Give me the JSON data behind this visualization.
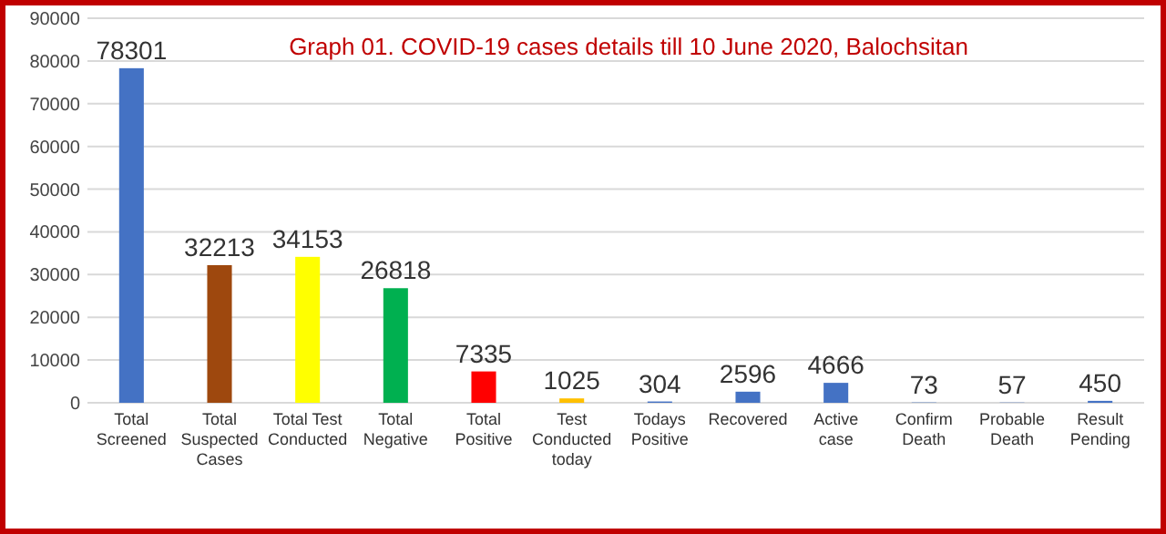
{
  "chart_data": {
    "type": "bar",
    "title": "Graph 01. COVID-19 cases details till 10 June 2020, Balochsitan",
    "categories": [
      "Total Screened",
      "Total Suspected Cases",
      "Total Test Conducted",
      "Total Negative",
      "Total Positive",
      "Test Conducted today",
      "Todays Positive",
      "Recovered",
      "Active case",
      "Confirm Death",
      "Probable Death",
      "Result Pending"
    ],
    "values": [
      78301,
      32213,
      34153,
      26818,
      7335,
      1025,
      304,
      2596,
      4666,
      73,
      57,
      450
    ],
    "colors": [
      "#4472c4",
      "#9e480e",
      "#ffff00",
      "#00b050",
      "#ff0000",
      "#ffc000",
      "#4472c4",
      "#4472c4",
      "#4472c4",
      "#4472c4",
      "#4472c4",
      "#4472c4"
    ],
    "ylim": [
      0,
      90000
    ],
    "yticks": [
      0,
      10000,
      20000,
      30000,
      40000,
      50000,
      60000,
      70000,
      80000,
      90000
    ],
    "grid": "y",
    "data_labels": true
  }
}
